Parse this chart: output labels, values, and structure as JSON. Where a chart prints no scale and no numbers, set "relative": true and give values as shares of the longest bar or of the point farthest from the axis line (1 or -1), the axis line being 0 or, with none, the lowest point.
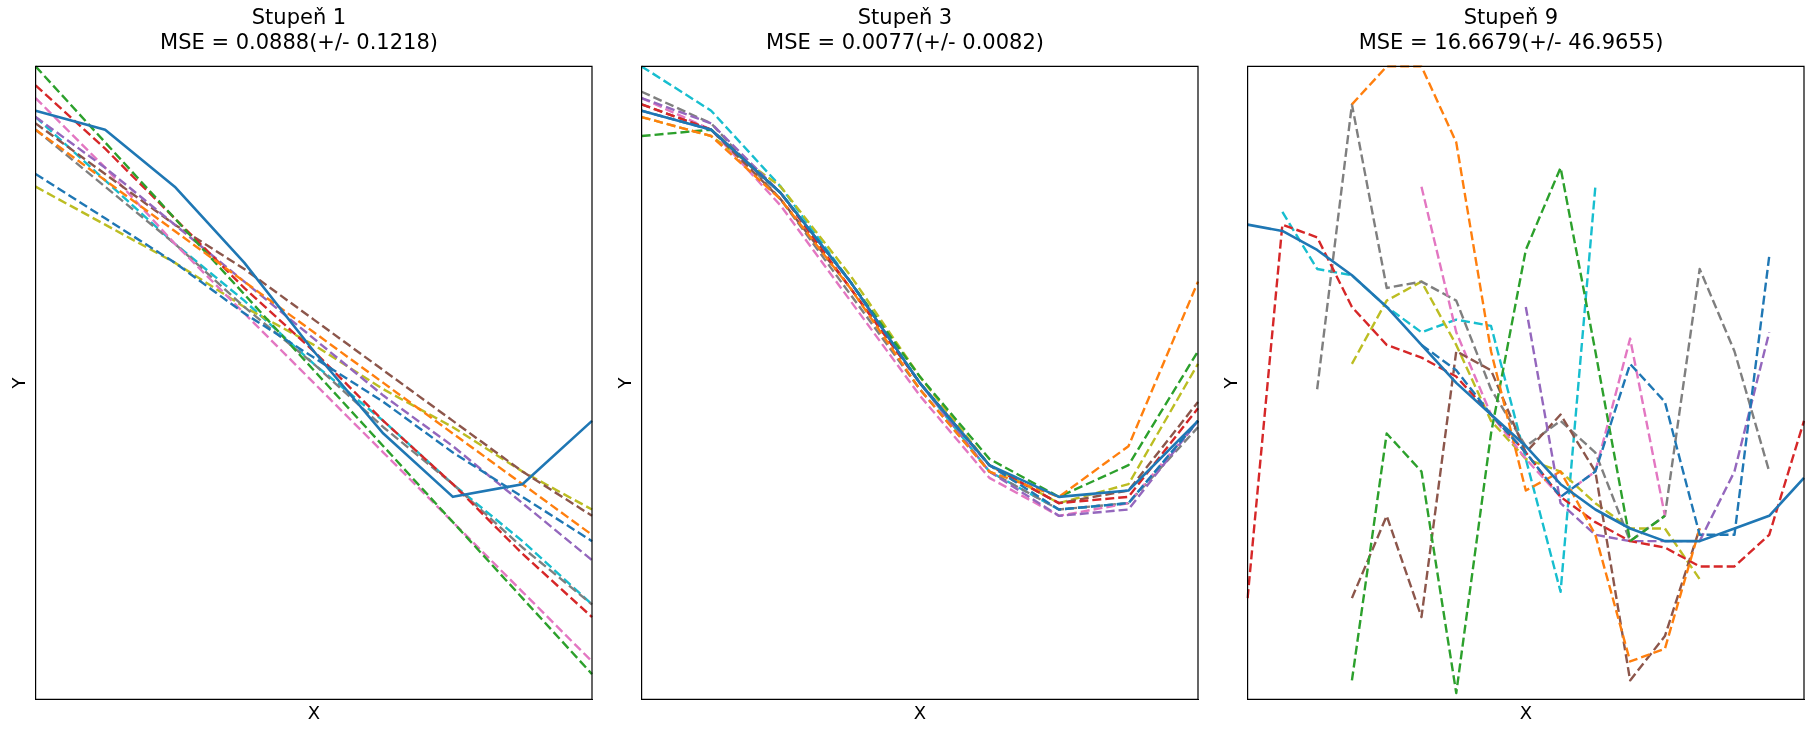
{
  "chart_data": [
    {
      "type": "line",
      "title": "Stupeň 1",
      "subtitle": "MSE = 0.0888(+/- 0.1218)",
      "xlabel": "X",
      "ylabel": "Y",
      "relative": true,
      "tick_labels": false,
      "marker": "none",
      "categories": [
        null,
        null,
        null,
        null,
        null,
        null,
        null,
        null,
        null
      ],
      "series": [
        {
          "color": "#1f77b4",
          "line_style": "solid",
          "values": [
            0.93,
            0.9,
            0.81,
            0.69,
            0.55,
            0.42,
            0.32,
            0.34,
            0.44
          ]
        },
        {
          "color": "#1f77b4",
          "line_style": "dashed",
          "values": [
            0.83,
            0.76,
            0.69,
            0.61,
            0.54,
            0.47,
            0.39,
            0.32,
            0.25
          ]
        },
        {
          "color": "#ff7f0e",
          "line_style": "dashed",
          "values": [
            0.9,
            0.82,
            0.74,
            0.66,
            0.58,
            0.5,
            0.42,
            0.34,
            0.26
          ]
        },
        {
          "color": "#2ca02c",
          "line_style": "dashed",
          "values": [
            1.0,
            0.88,
            0.76,
            0.64,
            0.52,
            0.4,
            0.28,
            0.16,
            0.04
          ]
        },
        {
          "color": "#d62728",
          "line_style": "dashed",
          "values": [
            0.97,
            0.87,
            0.76,
            0.65,
            0.55,
            0.44,
            0.34,
            0.23,
            0.13
          ]
        },
        {
          "color": "#9467bd",
          "line_style": "dashed",
          "values": [
            0.92,
            0.84,
            0.75,
            0.66,
            0.57,
            0.48,
            0.4,
            0.31,
            0.22
          ]
        },
        {
          "color": "#8c564b",
          "line_style": "dashed",
          "values": [
            0.91,
            0.83,
            0.75,
            0.68,
            0.6,
            0.52,
            0.44,
            0.36,
            0.29
          ]
        },
        {
          "color": "#e377c2",
          "line_style": "dashed",
          "values": [
            0.95,
            0.84,
            0.72,
            0.61,
            0.5,
            0.39,
            0.28,
            0.17,
            0.06
          ]
        },
        {
          "color": "#7f7f7f",
          "line_style": "dashed",
          "values": [
            0.9,
            0.81,
            0.72,
            0.62,
            0.53,
            0.43,
            0.34,
            0.24,
            0.15
          ]
        },
        {
          "color": "#bcbd22",
          "line_style": "dashed",
          "values": [
            0.81,
            0.75,
            0.69,
            0.62,
            0.56,
            0.49,
            0.43,
            0.36,
            0.3
          ]
        },
        {
          "color": "#17becf",
          "line_style": "dashed",
          "values": [
            0.92,
            0.82,
            0.72,
            0.63,
            0.53,
            0.44,
            0.34,
            0.25,
            0.15
          ]
        }
      ]
    },
    {
      "type": "line",
      "title": "Stupeň 3",
      "subtitle": "MSE = 0.0077(+/- 0.0082)",
      "xlabel": "X",
      "ylabel": "Y",
      "relative": true,
      "tick_labels": false,
      "marker": "none",
      "categories": [
        null,
        null,
        null,
        null,
        null,
        null,
        null,
        null,
        null
      ],
      "series": [
        {
          "color": "#1f77b4",
          "line_style": "solid",
          "values": [
            0.93,
            0.9,
            0.8,
            0.66,
            0.5,
            0.37,
            0.32,
            0.33,
            0.44
          ]
        },
        {
          "color": "#1f77b4",
          "line_style": "dashed",
          "values": [
            0.93,
            0.9,
            0.8,
            0.66,
            0.5,
            0.37,
            0.3,
            0.31,
            0.44
          ]
        },
        {
          "color": "#ff7f0e",
          "line_style": "dashed",
          "values": [
            0.92,
            0.89,
            0.79,
            0.65,
            0.49,
            0.36,
            0.32,
            0.4,
            0.66
          ]
        },
        {
          "color": "#2ca02c",
          "line_style": "dashed",
          "values": [
            0.89,
            0.9,
            0.8,
            0.66,
            0.51,
            0.38,
            0.32,
            0.37,
            0.55
          ]
        },
        {
          "color": "#d62728",
          "line_style": "dashed",
          "values": [
            0.94,
            0.9,
            0.8,
            0.65,
            0.5,
            0.37,
            0.31,
            0.32,
            0.46
          ]
        },
        {
          "color": "#9467bd",
          "line_style": "dashed",
          "values": [
            0.95,
            0.91,
            0.8,
            0.66,
            0.5,
            0.36,
            0.29,
            0.3,
            0.44
          ]
        },
        {
          "color": "#8c564b",
          "line_style": "dashed",
          "values": [
            0.94,
            0.9,
            0.79,
            0.65,
            0.5,
            0.37,
            0.31,
            0.33,
            0.47
          ]
        },
        {
          "color": "#e377c2",
          "line_style": "dashed",
          "values": [
            0.95,
            0.9,
            0.78,
            0.63,
            0.48,
            0.35,
            0.29,
            0.31,
            0.44
          ]
        },
        {
          "color": "#7f7f7f",
          "line_style": "dashed",
          "values": [
            0.96,
            0.91,
            0.79,
            0.64,
            0.49,
            0.36,
            0.3,
            0.31,
            0.43
          ]
        },
        {
          "color": "#bcbd22",
          "line_style": "dashed",
          "values": [
            0.92,
            0.89,
            0.81,
            0.67,
            0.51,
            0.37,
            0.31,
            0.34,
            0.53
          ]
        },
        {
          "color": "#17becf",
          "line_style": "dashed",
          "values": [
            1.0,
            0.93,
            0.81,
            0.66,
            0.5,
            0.36,
            0.3,
            0.31,
            0.44
          ]
        }
      ]
    },
    {
      "type": "line",
      "title": "Stupeň 9",
      "subtitle": "MSE = 16.6679(+/- 46.9655)",
      "xlabel": "X",
      "ylabel": "Y",
      "relative": true,
      "tick_labels": false,
      "marker": "none",
      "categories": [
        null,
        null,
        null,
        null,
        null,
        null,
        null,
        null,
        null,
        null,
        null,
        null,
        null,
        null,
        null,
        null,
        null
      ],
      "series": [
        {
          "color": "#1f77b4",
          "line_style": "solid",
          "values": [
            0.75,
            0.74,
            0.71,
            0.67,
            0.62,
            0.56,
            0.5,
            0.45,
            0.4,
            0.34,
            0.3,
            0.27,
            0.25,
            0.25,
            0.27,
            0.29,
            0.35
          ]
        },
        {
          "color": "#1f77b4",
          "line_style": "dashed",
          "values": [
            null,
            null,
            null,
            null,
            null,
            0.56,
            0.52,
            0.45,
            0.39,
            0.32,
            0.36,
            0.53,
            0.47,
            0.26,
            0.26,
            0.7,
            null
          ]
        },
        {
          "color": "#ff7f0e",
          "line_style": "dashed",
          "values": [
            null,
            null,
            null,
            0.94,
            1.0,
            1.0,
            0.88,
            0.55,
            0.33,
            0.36,
            0.26,
            0.06,
            0.08,
            0.27,
            null,
            null,
            null
          ]
        },
        {
          "color": "#2ca02c",
          "line_style": "dashed",
          "values": [
            null,
            null,
            null,
            0.03,
            0.42,
            0.36,
            0.01,
            0.42,
            0.71,
            0.84,
            0.55,
            0.25,
            0.29,
            null,
            null,
            null,
            null
          ]
        },
        {
          "color": "#d62728",
          "line_style": "dashed",
          "values": [
            0.16,
            0.75,
            0.73,
            0.62,
            0.56,
            0.54,
            0.51,
            0.45,
            0.39,
            0.32,
            0.28,
            0.25,
            0.24,
            0.21,
            0.21,
            0.26,
            0.44
          ]
        },
        {
          "color": "#9467bd",
          "line_style": "dashed",
          "values": [
            null,
            null,
            null,
            null,
            null,
            null,
            null,
            null,
            0.62,
            0.31,
            0.26,
            0.25,
            0.25,
            0.25,
            0.36,
            0.58,
            null
          ]
        },
        {
          "color": "#8c564b",
          "line_style": "dashed",
          "values": [
            null,
            null,
            null,
            0.16,
            0.29,
            0.13,
            0.55,
            0.52,
            0.39,
            0.45,
            0.36,
            0.03,
            0.1,
            0.27,
            null,
            null,
            null
          ]
        },
        {
          "color": "#e377c2",
          "line_style": "dashed",
          "values": [
            null,
            null,
            null,
            null,
            null,
            0.81,
            0.58,
            0.45,
            0.38,
            0.32,
            0.36,
            0.57,
            0.29,
            null,
            null,
            null,
            null
          ]
        },
        {
          "color": "#7f7f7f",
          "line_style": "dashed",
          "values": [
            null,
            null,
            0.49,
            0.94,
            0.65,
            0.66,
            0.63,
            0.49,
            0.4,
            0.44,
            0.39,
            0.25,
            0.29,
            0.68,
            0.55,
            0.36,
            null
          ]
        },
        {
          "color": "#bcbd22",
          "line_style": "dashed",
          "values": [
            null,
            null,
            null,
            0.53,
            0.63,
            0.66,
            0.56,
            0.44,
            0.38,
            0.36,
            0.31,
            0.27,
            0.27,
            0.19,
            null,
            null,
            null
          ]
        },
        {
          "color": "#17becf",
          "line_style": "dashed",
          "values": [
            null,
            0.77,
            0.68,
            0.67,
            0.62,
            0.58,
            0.6,
            0.59,
            0.38,
            0.17,
            0.81,
            null,
            null,
            null,
            null,
            null,
            null
          ]
        }
      ]
    }
  ]
}
